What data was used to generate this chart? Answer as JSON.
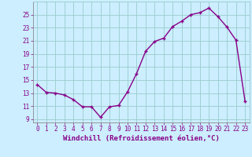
{
  "x": [
    0,
    1,
    2,
    3,
    4,
    5,
    6,
    7,
    8,
    9,
    10,
    11,
    12,
    13,
    14,
    15,
    16,
    17,
    18,
    19,
    20,
    21,
    22,
    23
  ],
  "y": [
    14.3,
    13.1,
    13.0,
    12.7,
    12.0,
    10.9,
    10.9,
    9.3,
    10.9,
    11.1,
    13.2,
    16.0,
    19.4,
    20.9,
    21.4,
    23.2,
    24.0,
    25.0,
    25.3,
    26.0,
    24.7,
    23.1,
    21.1,
    11.8
  ],
  "line_color": "#880088",
  "marker": "+",
  "bg_color": "#cceeff",
  "grid_color": "#99cccc",
  "xlabel": "Windchill (Refroidissement éolien,°C)",
  "xlim": [
    -0.5,
    23.5
  ],
  "ylim": [
    8.5,
    27.0
  ],
  "xticks": [
    0,
    1,
    2,
    3,
    4,
    5,
    6,
    7,
    8,
    9,
    10,
    11,
    12,
    13,
    14,
    15,
    16,
    17,
    18,
    19,
    20,
    21,
    22,
    23
  ],
  "yticks": [
    9,
    11,
    13,
    15,
    17,
    19,
    21,
    23,
    25
  ],
  "label_color": "#880088",
  "tick_fontsize": 5.5,
  "xlabel_fontsize": 6.5,
  "linewidth": 1.0,
  "markersize": 3.5,
  "markeredgewidth": 1.0
}
